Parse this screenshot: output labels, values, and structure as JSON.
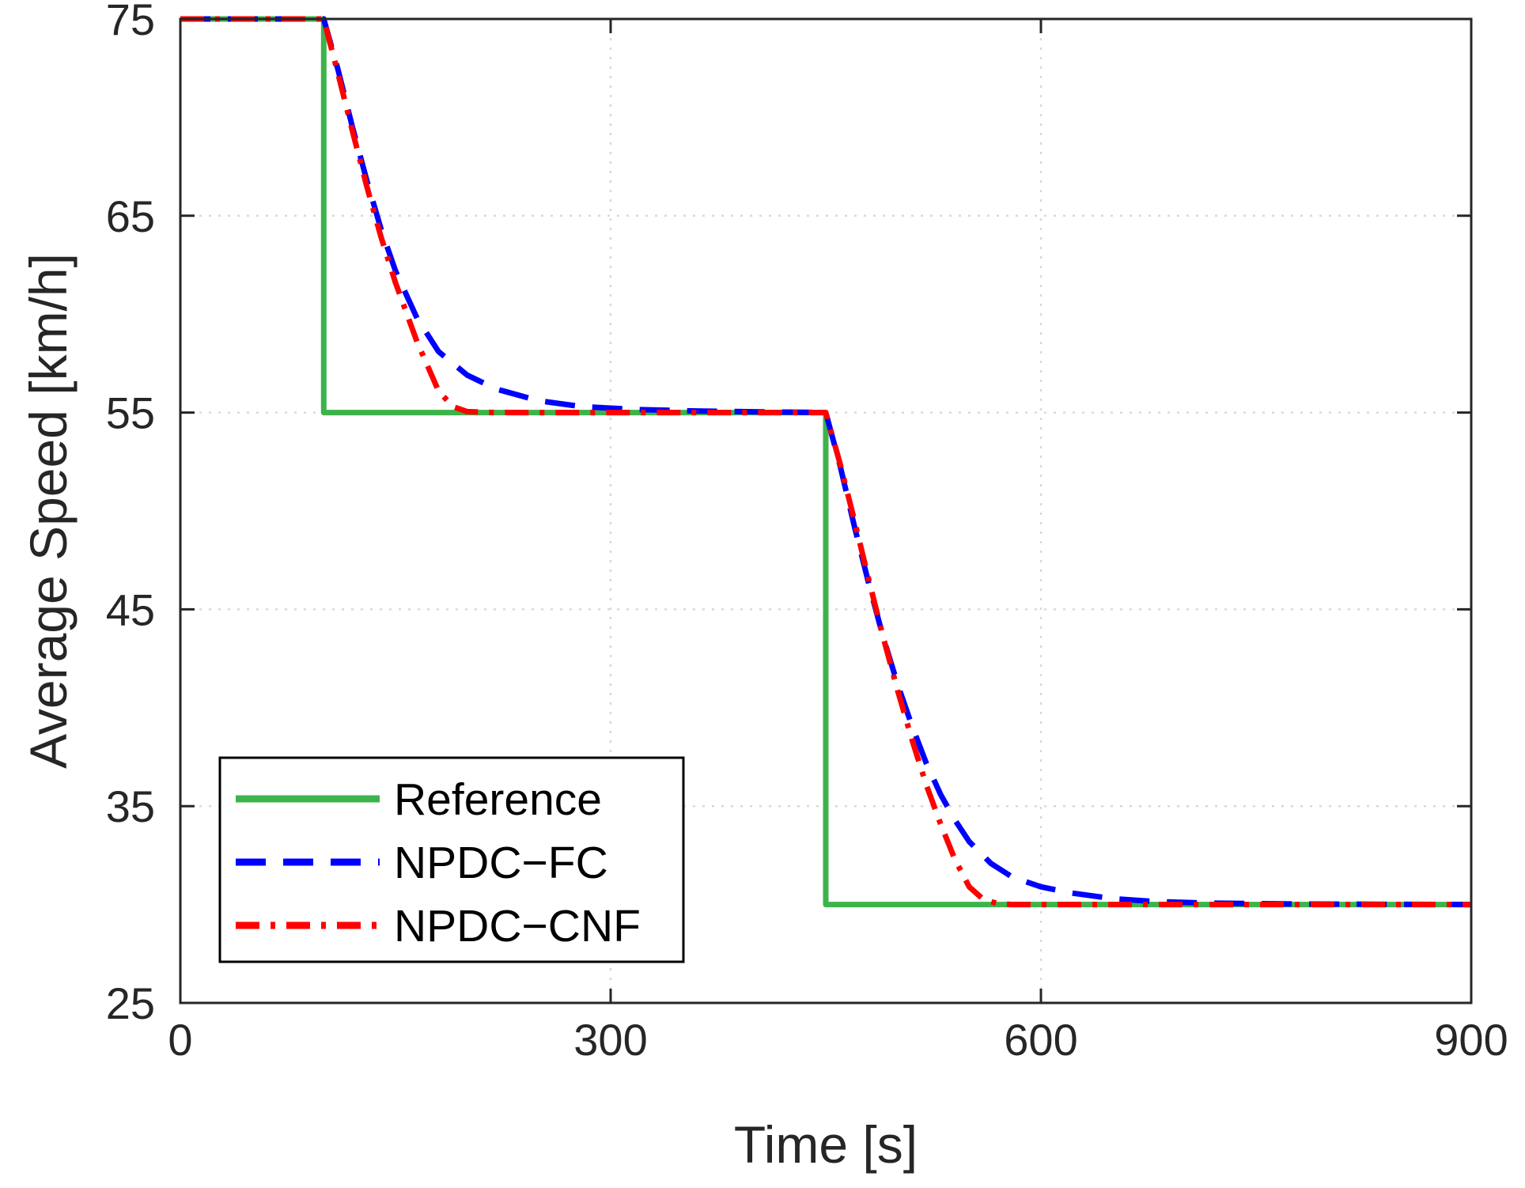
{
  "chart_data": {
    "type": "line",
    "title": "",
    "xlabel": "Time [s]",
    "ylabel": "Average Speed [km/h]",
    "xlim": [
      0,
      900
    ],
    "ylim": [
      25,
      75
    ],
    "xticks": [
      0,
      300,
      600,
      900
    ],
    "yticks": [
      25,
      35,
      45,
      55,
      65,
      75
    ],
    "xtick_labels": [
      "0",
      "300",
      "600",
      "900"
    ],
    "ytick_labels": [
      "25",
      "35",
      "45",
      "55",
      "65",
      "75"
    ],
    "grid": true,
    "legend_position": "bottom-left",
    "series": [
      {
        "name": "Reference",
        "color": "#3cb44b",
        "style": "solid",
        "x": [
          0,
          100,
          100,
          450,
          450,
          900
        ],
        "y": [
          75,
          75,
          55,
          55,
          30,
          30
        ]
      },
      {
        "name": "NPDC−FC",
        "color": "#0000ff",
        "style": "dashed",
        "x": [
          0,
          100,
          110,
          120,
          130,
          140,
          150,
          165,
          180,
          200,
          220,
          250,
          280,
          320,
          360,
          400,
          450,
          460,
          470,
          480,
          490,
          500,
          510,
          520,
          530,
          540,
          550,
          565,
          580,
          600,
          620,
          650,
          680,
          720,
          780,
          850,
          900
        ],
        "y": [
          75,
          75,
          72.4,
          69.5,
          66.8,
          64.3,
          62.2,
          59.8,
          58.1,
          56.9,
          56.2,
          55.6,
          55.3,
          55.15,
          55.08,
          55.04,
          55,
          52.3,
          49.2,
          46.3,
          43.6,
          41.2,
          39.1,
          37.2,
          35.6,
          34.3,
          33.2,
          32.1,
          31.4,
          30.9,
          30.6,
          30.3,
          30.15,
          30.07,
          30.03,
          30.01,
          30
        ]
      },
      {
        "name": "NPDC−CNF",
        "color": "#ff0000",
        "style": "dashdot",
        "x": [
          0,
          100,
          110,
          120,
          130,
          140,
          150,
          165,
          180,
          190,
          200,
          215,
          240,
          280,
          350,
          450,
          460,
          470,
          480,
          490,
          500,
          510,
          520,
          530,
          540,
          550,
          560,
          570,
          580,
          600,
          650,
          750,
          900
        ],
        "y": [
          75,
          75,
          72.2,
          69.3,
          66.5,
          63.9,
          61.6,
          58.6,
          56.1,
          55.3,
          55.05,
          55.01,
          55,
          55,
          55,
          55,
          52.4,
          49.5,
          46.5,
          43.6,
          40.9,
          38.4,
          36.1,
          34.1,
          32.3,
          30.9,
          30.25,
          30.05,
          30,
          30,
          30,
          30,
          30
        ]
      }
    ]
  }
}
